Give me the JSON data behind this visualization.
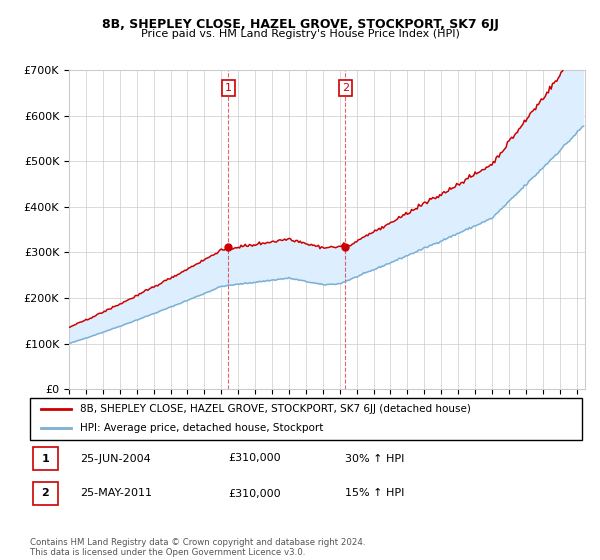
{
  "title": "8B, SHEPLEY CLOSE, HAZEL GROVE, STOCKPORT, SK7 6JJ",
  "subtitle": "Price paid vs. HM Land Registry's House Price Index (HPI)",
  "legend_line1": "8B, SHEPLEY CLOSE, HAZEL GROVE, STOCKPORT, SK7 6JJ (detached house)",
  "legend_line2": "HPI: Average price, detached house, Stockport",
  "sale1_label": "1",
  "sale1_date": "25-JUN-2004",
  "sale1_price": "£310,000",
  "sale1_hpi": "30% ↑ HPI",
  "sale2_label": "2",
  "sale2_date": "25-MAY-2011",
  "sale2_price": "£310,000",
  "sale2_hpi": "15% ↑ HPI",
  "copyright": "Contains HM Land Registry data © Crown copyright and database right 2024.\nThis data is licensed under the Open Government Licence v3.0.",
  "red_color": "#cc0000",
  "blue_color": "#7ab0d4",
  "shade_color": "#ddeeff",
  "vline_color": "#cc0000",
  "grid_color": "#cccccc",
  "ylim": [
    0,
    700000
  ],
  "yticks": [
    0,
    100000,
    200000,
    300000,
    400000,
    500000,
    600000,
    700000
  ],
  "ytick_labels": [
    "£0",
    "£100K",
    "£200K",
    "£300K",
    "£400K",
    "£500K",
    "£600K",
    "£700K"
  ],
  "year_start": 1995,
  "year_end": 2025
}
